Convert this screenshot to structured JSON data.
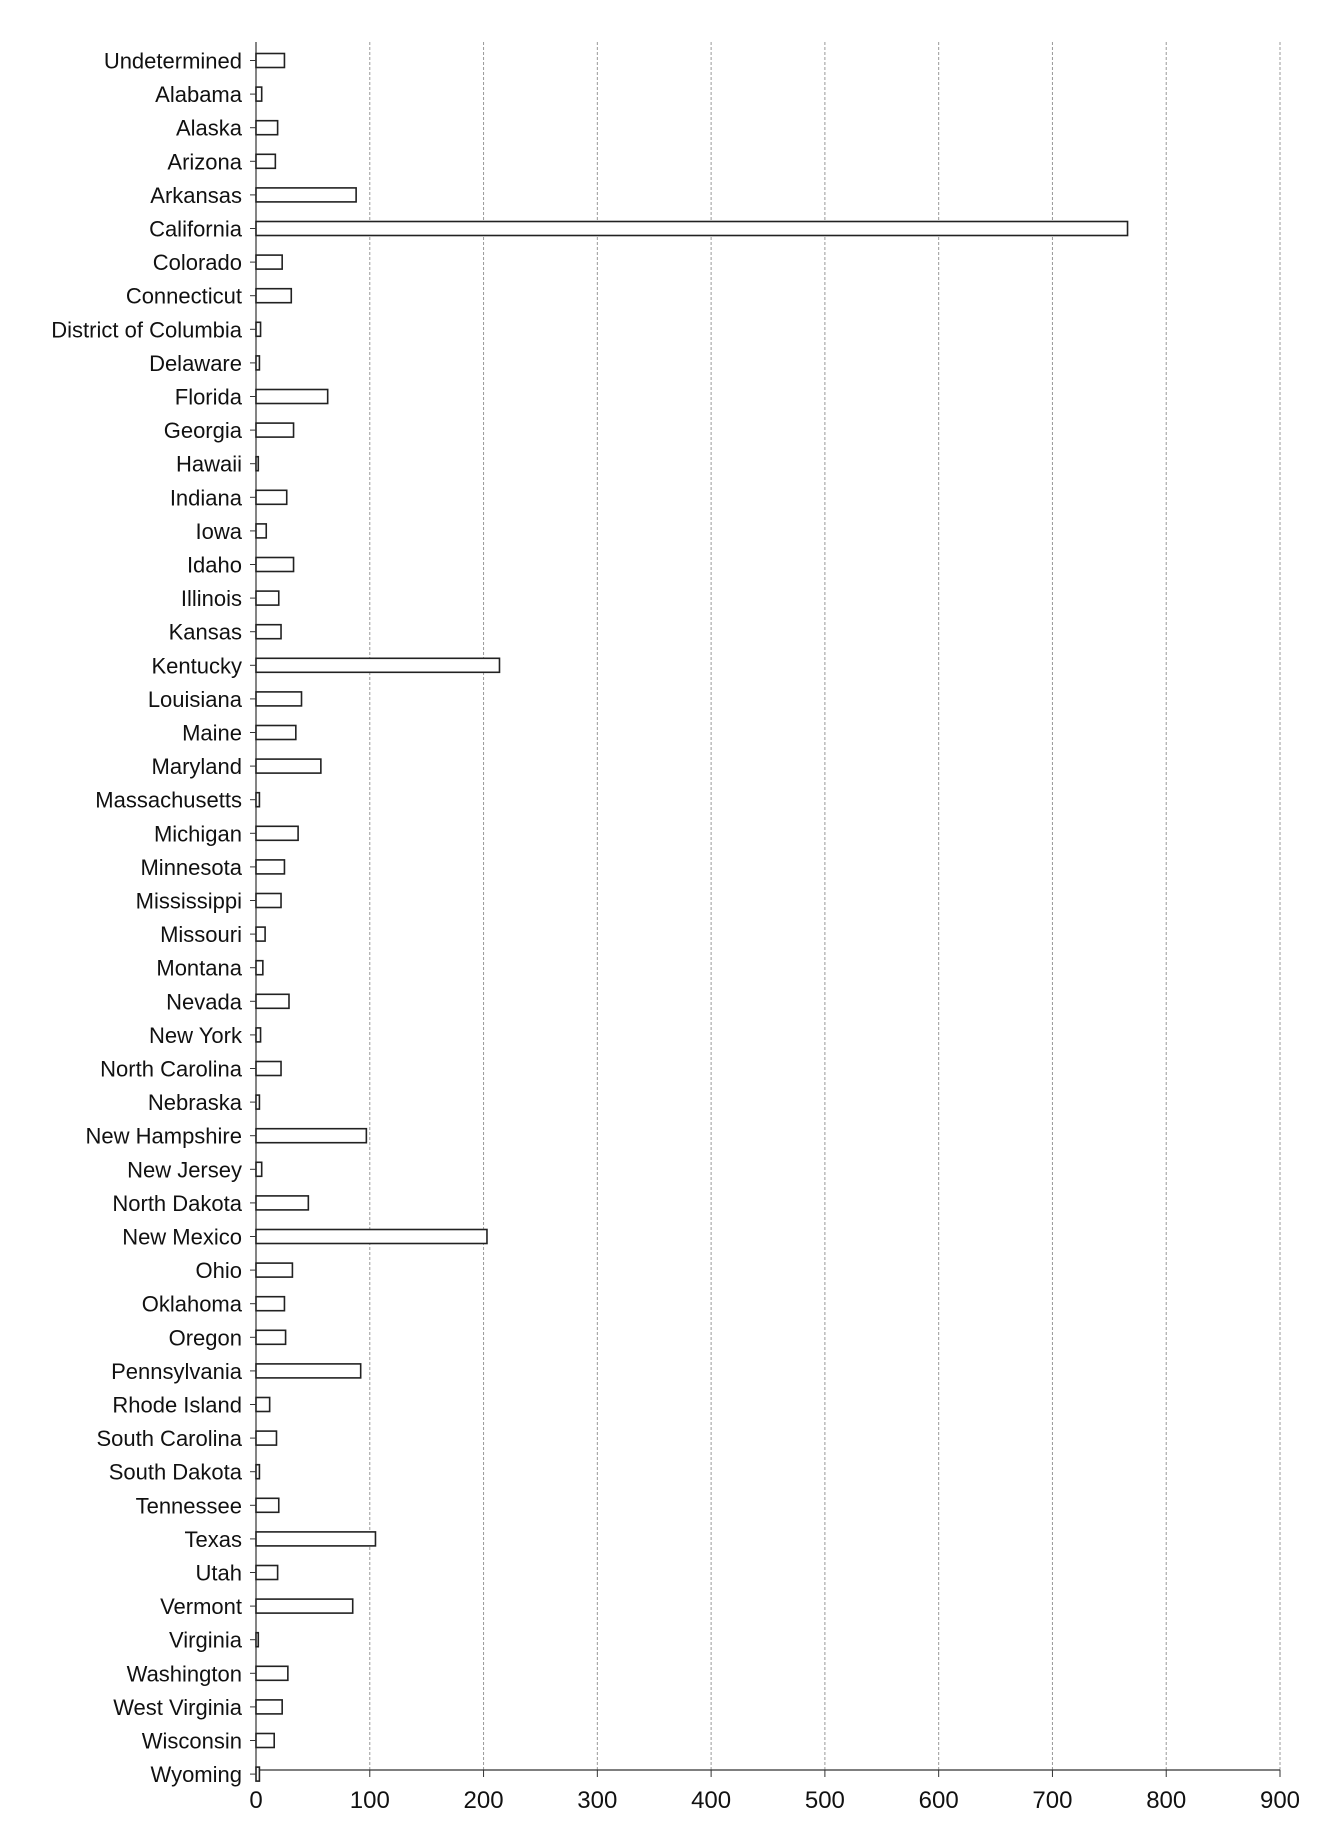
{
  "chart_data": {
    "type": "bar",
    "orientation": "horizontal",
    "categories": [
      "Undetermined",
      "Alabama",
      "Alaska",
      "Arizona",
      "Arkansas",
      "California",
      "Colorado",
      "Connecticut",
      "District of Columbia",
      "Delaware",
      "Florida",
      "Georgia",
      "Hawaii",
      "Indiana",
      "Iowa",
      "Idaho",
      "Illinois",
      "Kansas",
      "Kentucky",
      "Louisiana",
      "Maine",
      "Maryland",
      "Massachusetts",
      "Michigan",
      "Minnesota",
      "Mississippi",
      "Missouri",
      "Montana",
      "Nevada",
      "New York",
      "North Carolina",
      "Nebraska",
      "New Hampshire",
      "New Jersey",
      "North Dakota",
      "New Mexico",
      "Ohio",
      "Oklahoma",
      "Oregon",
      "Pennsylvania",
      "Rhode Island",
      "South Carolina",
      "South Dakota",
      "Tennessee",
      "Texas",
      "Utah",
      "Vermont",
      "Virginia",
      "Washington",
      "West Virginia",
      "Wisconsin",
      "Wyoming"
    ],
    "values": [
      25,
      5,
      19,
      17,
      88,
      766,
      23,
      31,
      4,
      3,
      63,
      33,
      2,
      27,
      9,
      33,
      20,
      22,
      214,
      40,
      35,
      57,
      3,
      37,
      25,
      22,
      8,
      6,
      29,
      4,
      22,
      3,
      97,
      5,
      46,
      203,
      32,
      25,
      26,
      92,
      12,
      18,
      3,
      20,
      105,
      19,
      85,
      2,
      28,
      23,
      16,
      3
    ],
    "xlim": [
      0,
      900
    ],
    "xticks": [
      0,
      100,
      200,
      300,
      400,
      500,
      600,
      700,
      800,
      900
    ],
    "grid": "vertical",
    "bar_color": "#ffffff",
    "bar_edge_color": "#222222",
    "grid_color": "#999999"
  }
}
